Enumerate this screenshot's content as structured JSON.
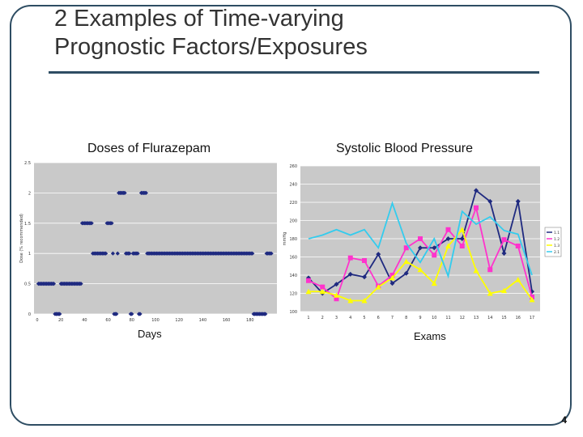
{
  "slide": {
    "title_line1": "2 Examples of Time-varying",
    "title_line2": "Prognostic Factors/Exposures",
    "page_number": "4"
  },
  "chart_data": [
    {
      "type": "scatter",
      "title": "Doses of Flurazepam",
      "xlabel": "Days",
      "ylabel": "Dose (% recommended)",
      "xlim": [
        0,
        200
      ],
      "ylim": [
        0,
        2.5
      ],
      "x_ticks": [
        "0",
        "20",
        "40",
        "60",
        "80",
        "100",
        "120",
        "140",
        "160",
        "180"
      ],
      "y_ticks": [
        "0",
        "0.5",
        "1",
        "1.5",
        "2",
        "2.5"
      ],
      "grid": true,
      "color": "#1f2a80",
      "segments": [
        {
          "x_start": 1,
          "x_end": 14,
          "y": 0.5
        },
        {
          "x_start": 15,
          "x_end": 19,
          "y": 0
        },
        {
          "x_start": 20,
          "x_end": 37,
          "y": 0.5
        },
        {
          "x_start": 38,
          "x_end": 46,
          "y": 1.5
        },
        {
          "x_start": 47,
          "x_end": 58,
          "y": 1
        },
        {
          "x_start": 59,
          "x_end": 63,
          "y": 1.5
        },
        {
          "x_start": 64,
          "x_end": 64,
          "y": 1
        },
        {
          "x_start": 65,
          "x_end": 67,
          "y": 0
        },
        {
          "x_start": 68,
          "x_end": 68,
          "y": 1
        },
        {
          "x_start": 69,
          "x_end": 74,
          "y": 2
        },
        {
          "x_start": 75,
          "x_end": 78,
          "y": 1
        },
        {
          "x_start": 79,
          "x_end": 80,
          "y": 0
        },
        {
          "x_start": 81,
          "x_end": 85,
          "y": 1
        },
        {
          "x_start": 86,
          "x_end": 87,
          "y": 0
        },
        {
          "x_start": 88,
          "x_end": 92,
          "y": 2
        },
        {
          "x_start": 93,
          "x_end": 182,
          "y": 1
        },
        {
          "x_start": 183,
          "x_end": 193,
          "y": 0
        },
        {
          "x_start": 194,
          "x_end": 198,
          "y": 1
        }
      ]
    },
    {
      "type": "line",
      "title": "Systolic Blood Pressure",
      "xlabel": "Exams",
      "ylabel": "mmHg",
      "categories": [
        "1",
        "2",
        "3",
        "4",
        "5",
        "6",
        "7",
        "8",
        "9",
        "10",
        "11",
        "12",
        "13",
        "14",
        "15",
        "16",
        "17"
      ],
      "y_ticks": [
        "100",
        "120",
        "140",
        "160",
        "180",
        "200",
        "220",
        "240",
        "260"
      ],
      "ylim": [
        100,
        260
      ],
      "grid": true,
      "legend_position": "right",
      "series": [
        {
          "name": "1.1",
          "color": "#1f2a80",
          "marker": "diamond",
          "values": [
            137,
            120,
            130,
            141,
            138,
            163,
            131,
            142,
            170,
            170,
            180,
            180,
            233,
            221,
            164,
            221,
            122
          ]
        },
        {
          "name": "1.2",
          "color": "#ff33cc",
          "marker": "square",
          "values": [
            134,
            127,
            114,
            159,
            156,
            128,
            140,
            170,
            180,
            162,
            190,
            172,
            214,
            146,
            179,
            172,
            116
          ]
        },
        {
          "name": "1.3",
          "color": "#ffff00",
          "marker": "triangle",
          "values": [
            122,
            122,
            118,
            112,
            112,
            127,
            137,
            155,
            146,
            131,
            172,
            190,
            145,
            120,
            123,
            135,
            113
          ]
        },
        {
          "name": "2.1",
          "color": "#33ccee",
          "marker": "none",
          "values": [
            180,
            184,
            190,
            184,
            190,
            170,
            219,
            175,
            154,
            180,
            139,
            210,
            196,
            204,
            189,
            185,
            140
          ]
        }
      ]
    }
  ],
  "labels": {
    "left_ytick_labels_visible": true
  }
}
